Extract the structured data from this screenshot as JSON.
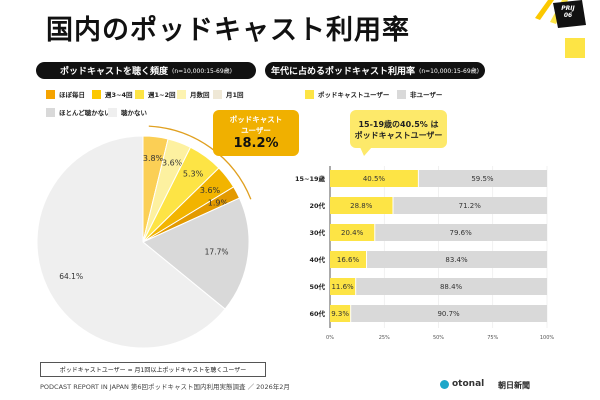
{
  "title": "国内のポッドキャスト利用率",
  "badge": {
    "line1": "PRIJ",
    "line2": "06"
  },
  "left": {
    "header": "ポッドキャストを聴く頻度",
    "note": "(n=10,000:15-69歳)",
    "legend": [
      {
        "label": "ほぼ毎日",
        "color": "#f5a300"
      },
      {
        "label": "週3~4回",
        "color": "#fcc800"
      },
      {
        "label": "週1~2回",
        "color": "#fde445"
      },
      {
        "label": "月数回",
        "color": "#fdf3b0"
      },
      {
        "label": "月1回",
        "color": "#efe8d6"
      },
      {
        "label": "ほとんど聴かない",
        "color": "#d9d9d9"
      },
      {
        "label": "聴かない",
        "color": "#efefef"
      }
    ],
    "callout": {
      "line1": "ポッドキャスト",
      "line2": "ユーザー",
      "value": "18.2%",
      "color": "#f0b000"
    }
  },
  "chart_data": [
    {
      "type": "pie",
      "slices": [
        {
          "label": "月1回",
          "value": 3.8,
          "display": "3.8%",
          "color": "#fbcf55"
        },
        {
          "label": "月数回",
          "value": 3.6,
          "display": "3.6%",
          "color": "#fdf1a0"
        },
        {
          "label": "週1~2回",
          "value": 5.3,
          "display": "5.3%",
          "color": "#fde445"
        },
        {
          "label": "週3~4回",
          "value": 3.6,
          "display": "3.6%",
          "color": "#f2b400"
        },
        {
          "label": "ほぼ毎日",
          "value": 1.9,
          "display": "1.9%",
          "color": "#e39a00"
        },
        {
          "label": "ほとんど聴かない",
          "value": 17.7,
          "display": "17.7%",
          "color": "#d9d9d9"
        },
        {
          "label": "聴かない",
          "value": 64.1,
          "display": "64.1%",
          "color": "#efefef"
        }
      ]
    },
    {
      "type": "bar",
      "stacked": true,
      "orientation": "horizontal",
      "categories": [
        "15~19歳",
        "20代",
        "30代",
        "40代",
        "50代",
        "60代"
      ],
      "series": [
        {
          "name": "ポッドキャストユーザー",
          "color": "#fde445",
          "values": [
            40.5,
            28.8,
            20.4,
            16.6,
            11.6,
            9.3
          ]
        },
        {
          "name": "非ユーザー",
          "color": "#d9d9d9",
          "values": [
            59.5,
            71.2,
            79.6,
            83.4,
            88.4,
            90.7
          ]
        }
      ],
      "xticks": [
        "0%",
        "25%",
        "50%",
        "75%",
        "100%"
      ],
      "xlim": [
        0,
        100
      ]
    }
  ],
  "right": {
    "header": "年代に占めるポッドキャスト利用率",
    "note": "(n=10,000:15-69歳)",
    "callout": {
      "line1": "15-19歳の40.5% は",
      "line2": "ポッドキャストユーザー",
      "color": "#fde96a"
    }
  },
  "footer": {
    "definition": "ポッドキャストユーザー = 月1回以上ポッドキャストを聴くユーザー",
    "source": "PODCAST REPORT IN JAPAN  第6回ポッドキャスト国内利用実態調査 ／ 2026年2月",
    "logo1": "otonal",
    "logo2": "朝日新聞"
  }
}
